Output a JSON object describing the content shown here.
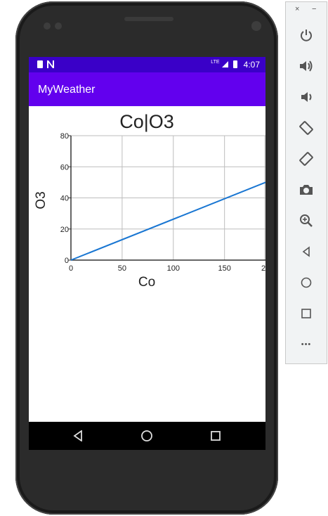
{
  "statusbar": {
    "time": "4:07",
    "network": "LTE"
  },
  "app": {
    "title": "MyWeather"
  },
  "chart_data": {
    "type": "line",
    "title": "Co|O3",
    "xlabel": "Co",
    "ylabel": "O3",
    "x_ticks": [
      "0",
      "50",
      "100",
      "150",
      "2"
    ],
    "y_ticks": [
      "0",
      "20",
      "40",
      "60",
      "80"
    ],
    "xlim": [
      0,
      190
    ],
    "ylim": [
      0,
      80
    ],
    "grid": true,
    "series": [
      {
        "color": "#1976d2",
        "x": [
          0,
          190
        ],
        "y": [
          0,
          50
        ]
      }
    ]
  },
  "emulator": {
    "close_label": "×",
    "minimize_label": "−",
    "more_label": "•••"
  },
  "colors": {
    "status_bar": "#3a00c8",
    "app_bar": "#6200ee",
    "line": "#1976d2"
  }
}
